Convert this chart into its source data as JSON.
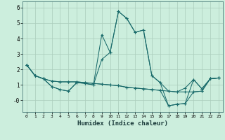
{
  "xlabel": "Humidex (Indice chaleur)",
  "ylabel": "",
  "bg_color": "#cceedd",
  "grid_color": "#aaccbb",
  "line_color": "#1a6b6b",
  "xlim": [
    -0.5,
    23.5
  ],
  "ylim": [
    -0.75,
    6.4
  ],
  "xticks": [
    0,
    1,
    2,
    3,
    4,
    5,
    6,
    7,
    8,
    9,
    10,
    11,
    12,
    13,
    14,
    15,
    16,
    17,
    18,
    19,
    20,
    21,
    22,
    23
  ],
  "yticks": [
    0,
    1,
    2,
    3,
    4,
    5,
    6
  ],
  "ytick_labels": [
    "-0",
    "1",
    "2",
    "3",
    "4",
    "5",
    "6"
  ],
  "lines": [
    {
      "x": [
        0,
        1,
        2,
        3,
        4,
        5,
        6,
        7,
        8,
        9,
        10,
        11,
        12,
        13,
        14,
        15,
        16,
        17,
        18,
        19,
        20,
        21,
        22,
        23
      ],
      "y": [
        2.3,
        1.6,
        1.4,
        0.9,
        0.7,
        0.6,
        1.15,
        1.1,
        1.0,
        4.25,
        3.1,
        5.75,
        5.3,
        4.4,
        4.55,
        1.6,
        1.15,
        0.6,
        0.55,
        0.8,
        1.35,
        0.75,
        1.4,
        1.45
      ]
    },
    {
      "x": [
        0,
        1,
        2,
        3,
        4,
        5,
        6,
        7,
        8,
        9,
        10,
        11,
        12,
        13,
        14,
        15,
        16,
        17,
        18,
        19,
        20,
        21,
        22,
        23
      ],
      "y": [
        2.3,
        1.6,
        1.4,
        0.9,
        0.7,
        0.6,
        1.15,
        1.1,
        1.0,
        2.65,
        3.1,
        5.75,
        5.3,
        4.4,
        4.55,
        1.6,
        1.15,
        -0.35,
        -0.25,
        -0.2,
        1.35,
        0.75,
        1.4,
        1.45
      ]
    },
    {
      "x": [
        0,
        1,
        2,
        3,
        4,
        5,
        6,
        7,
        8,
        9,
        10,
        11,
        12,
        13,
        14,
        15,
        16,
        17,
        18,
        19,
        20,
        21,
        22,
        23
      ],
      "y": [
        2.3,
        1.6,
        1.4,
        1.25,
        1.2,
        1.2,
        1.2,
        1.15,
        1.1,
        1.05,
        1.0,
        0.95,
        0.85,
        0.8,
        0.75,
        0.7,
        0.65,
        0.6,
        0.55,
        0.55,
        0.55,
        0.6,
        1.4,
        1.45
      ]
    },
    {
      "x": [
        0,
        1,
        2,
        3,
        4,
        5,
        6,
        7,
        8,
        9,
        10,
        11,
        12,
        13,
        14,
        15,
        16,
        17,
        18,
        19,
        20,
        21,
        22,
        23
      ],
      "y": [
        2.3,
        1.6,
        1.4,
        1.25,
        1.2,
        1.2,
        1.2,
        1.15,
        1.1,
        1.05,
        1.0,
        0.95,
        0.85,
        0.8,
        0.75,
        0.7,
        0.65,
        -0.35,
        -0.25,
        -0.2,
        0.55,
        0.6,
        1.4,
        1.45
      ]
    }
  ]
}
